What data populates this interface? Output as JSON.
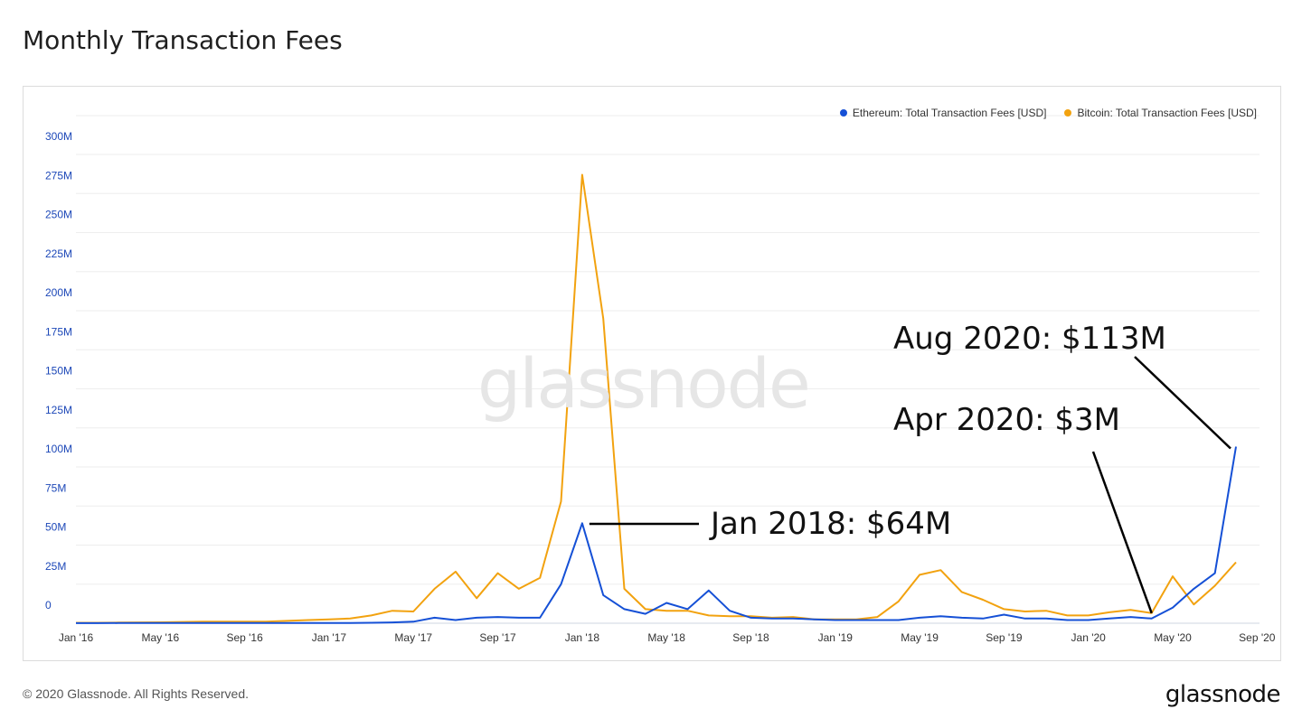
{
  "title": "Monthly Transaction Fees",
  "footer": {
    "copyright": "© 2020 Glassnode. All Rights Reserved.",
    "logo": "glassnode"
  },
  "watermark": "glassnode",
  "colors": {
    "ethereum": "#1550d6",
    "bitcoin": "#f2a20f"
  },
  "annotations": {
    "jan2018": "Jan 2018: $64M",
    "apr2020": "Apr 2020: $3M",
    "aug2020": "Aug 2020: $113M"
  },
  "chart_data": {
    "type": "line",
    "title": "Monthly Transaction Fees",
    "xlabel": "",
    "ylabel": "",
    "ylim": [
      0,
      300
    ],
    "y_unit": "M USD",
    "y_ticks": [
      0,
      25,
      50,
      75,
      100,
      125,
      150,
      175,
      200,
      225,
      250,
      275,
      300
    ],
    "y_tick_labels": [
      "0",
      "25M",
      "50M",
      "75M",
      "100M",
      "125M",
      "150M",
      "175M",
      "200M",
      "225M",
      "250M",
      "275M",
      "300M"
    ],
    "x_tick_labels": [
      "Jan '16",
      "May '16",
      "Sep '16",
      "Jan '17",
      "May '17",
      "Sep '17",
      "Jan '18",
      "May '18",
      "Sep '18",
      "Jan '19",
      "May '19",
      "Sep '19",
      "Jan '20",
      "May '20",
      "Sep '20"
    ],
    "legend_position": "top-right",
    "grid": true,
    "categories": [
      "Jan 2016",
      "Feb 2016",
      "Mar 2016",
      "Apr 2016",
      "May 2016",
      "Jun 2016",
      "Jul 2016",
      "Aug 2016",
      "Sep 2016",
      "Oct 2016",
      "Nov 2016",
      "Dec 2016",
      "Jan 2017",
      "Feb 2017",
      "Mar 2017",
      "Apr 2017",
      "May 2017",
      "Jun 2017",
      "Jul 2017",
      "Aug 2017",
      "Sep 2017",
      "Oct 2017",
      "Nov 2017",
      "Dec 2017",
      "Jan 2018",
      "Feb 2018",
      "Mar 2018",
      "Apr 2018",
      "May 2018",
      "Jun 2018",
      "Jul 2018",
      "Aug 2018",
      "Sep 2018",
      "Oct 2018",
      "Nov 2018",
      "Dec 2018",
      "Jan 2019",
      "Feb 2019",
      "Mar 2019",
      "Apr 2019",
      "May 2019",
      "Jun 2019",
      "Jul 2019",
      "Aug 2019",
      "Sep 2019",
      "Oct 2019",
      "Nov 2019",
      "Dec 2019",
      "Jan 2020",
      "Feb 2020",
      "Mar 2020",
      "Apr 2020",
      "May 2020",
      "Jun 2020",
      "Jul 2020",
      "Aug 2020"
    ],
    "series": [
      {
        "name": "Ethereum: Total Transaction Fees [USD]",
        "values": [
          0.05,
          0.05,
          0.1,
          0.1,
          0.15,
          0.2,
          0.2,
          0.2,
          0.2,
          0.2,
          0.2,
          0.2,
          0.2,
          0.2,
          0.3,
          0.5,
          1,
          3.5,
          2,
          3.5,
          4,
          3.5,
          3.5,
          25,
          64,
          18,
          9,
          6,
          13,
          9,
          21,
          8,
          3.5,
          3,
          3,
          2.5,
          2,
          2,
          2,
          2,
          3.5,
          4.5,
          3.5,
          3,
          5.5,
          3,
          3,
          2,
          2,
          3,
          4,
          3,
          10,
          22,
          32,
          113
        ]
      },
      {
        "name": "Bitcoin: Total Transaction Fees [USD]",
        "values": [
          0.3,
          0.3,
          0.4,
          0.5,
          0.6,
          0.8,
          1,
          1,
          1,
          1,
          1.5,
          2,
          2.5,
          3,
          5,
          8,
          7.5,
          22,
          33,
          16,
          32,
          22,
          29,
          78,
          287,
          195,
          22,
          9,
          8,
          8,
          5,
          4.5,
          4.5,
          3.5,
          4,
          2.5,
          2.5,
          2.5,
          4,
          14,
          31,
          34,
          20,
          15,
          9,
          7.5,
          8,
          5,
          5,
          7,
          8.5,
          6.5,
          30,
          12,
          24,
          39
        ]
      }
    ]
  }
}
